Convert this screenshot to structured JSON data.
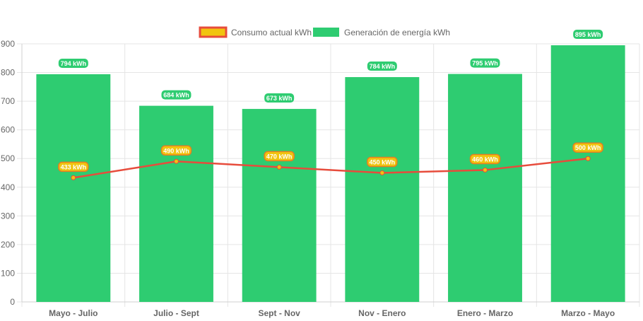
{
  "chart_data": {
    "type": "bar",
    "categories": [
      "Mayo - Julio",
      "Julio - Sept",
      "Sept - Nov",
      "Nov - Enero",
      "Enero - Marzo",
      "Marzo - Mayo"
    ],
    "series": [
      {
        "name": "Generación de energía kWh",
        "type": "bar",
        "values": [
          794,
          684,
          673,
          784,
          795,
          895
        ],
        "labels": [
          "794 kWh",
          "684 kWh",
          "673 kWh",
          "784 kWh",
          "795 kWh",
          "895 kWh"
        ],
        "color": "#2ecc71"
      },
      {
        "name": "Consumo actual kWh",
        "type": "line",
        "values": [
          433,
          490,
          470,
          450,
          460,
          500
        ],
        "labels": [
          "433 kWh",
          "490 kWh",
          "470 kWh",
          "450 kWh",
          "460 kWh",
          "500 kWh"
        ],
        "color": "#e74c3c",
        "fill": "#f1c40f"
      }
    ],
    "legend": {
      "position": "top",
      "order": [
        "Consumo actual kWh",
        "Generación de energía kWh"
      ]
    },
    "yticks": [
      "0",
      "100",
      "200",
      "300",
      "400",
      "500",
      "600",
      "700",
      "800",
      "900"
    ],
    "ylim": [
      0,
      900
    ],
    "grid": true,
    "title": "",
    "xlabel": "",
    "ylabel": ""
  }
}
